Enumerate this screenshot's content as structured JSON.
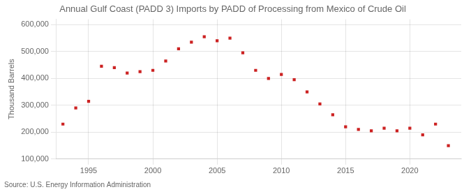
{
  "chart_data": {
    "type": "scatter",
    "title": "Annual Gulf Coast (PADD 3) Imports by PADD of Processing from Mexico of Crude Oil",
    "ylabel": "Thousand Barrels",
    "annotation": "Source: U.S. Energy Information Administration",
    "x": [
      1993,
      1994,
      1995,
      1996,
      1997,
      1998,
      1999,
      2000,
      2001,
      2002,
      2003,
      2004,
      2005,
      2006,
      2007,
      2008,
      2009,
      2010,
      2011,
      2012,
      2013,
      2014,
      2015,
      2016,
      2017,
      2018,
      2019,
      2020,
      2021,
      2022,
      2023
    ],
    "values": [
      230000,
      290000,
      315000,
      445000,
      440000,
      420000,
      425000,
      430000,
      465000,
      510000,
      535000,
      555000,
      540000,
      550000,
      495000,
      430000,
      400000,
      415000,
      395000,
      350000,
      305000,
      265000,
      220000,
      210000,
      205000,
      215000,
      205000,
      215000,
      190000,
      230000,
      150000
    ],
    "color": "#cc2222",
    "marker": "square",
    "xlim": [
      1992.5,
      2024
    ],
    "xticks": [
      1995,
      2000,
      2005,
      2010,
      2015,
      2020
    ],
    "ylim": [
      100000,
      620000
    ],
    "yticks": [
      {
        "value": 100000,
        "label": "100,000"
      },
      {
        "value": 200000,
        "label": "200,000"
      },
      {
        "value": 300000,
        "label": "300,000"
      },
      {
        "value": 400000,
        "label": "400,000"
      },
      {
        "value": 500000,
        "label": "500,000"
      },
      {
        "value": 600000,
        "label": "600,000"
      }
    ],
    "grid": true
  }
}
